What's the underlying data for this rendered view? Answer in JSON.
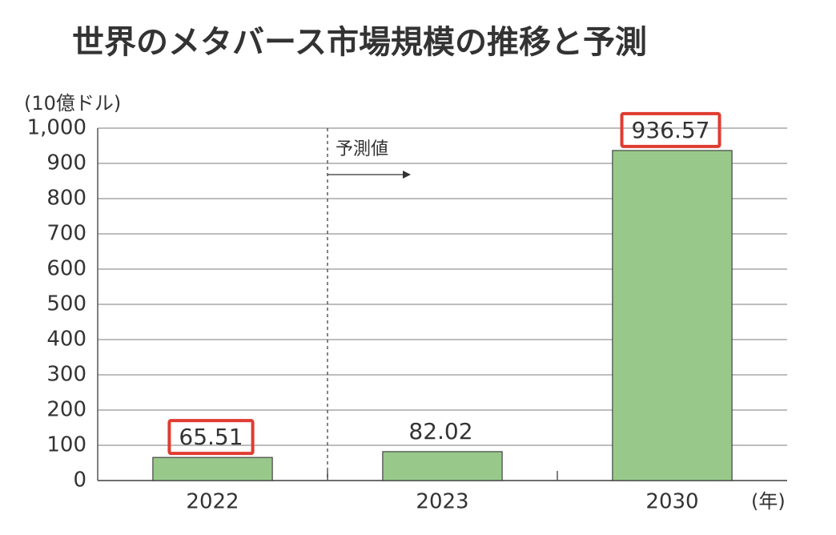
{
  "chart_data": {
    "type": "bar",
    "title": "世界のメタバース市場規模の推移と予測",
    "y_label": "(10億ドル)",
    "x_label": "(年)",
    "annotation": "予測値",
    "categories": [
      "2022",
      "2023",
      "2030"
    ],
    "values": [
      65.51,
      82.02,
      936.57
    ],
    "highlighted": [
      true,
      false,
      true
    ],
    "color": "#98c98a",
    "ylim": [
      0,
      1000
    ],
    "yticks": [
      0,
      100,
      200,
      300,
      400,
      500,
      600,
      700,
      800,
      900,
      {
        "value": 1000,
        "label": "1,000"
      }
    ],
    "grid": true
  }
}
